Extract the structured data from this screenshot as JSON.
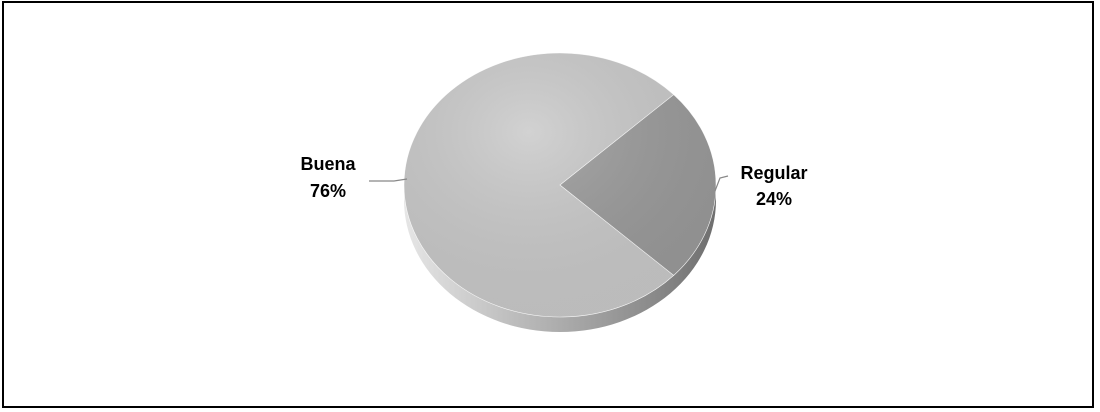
{
  "chart_data": {
    "type": "pie",
    "style": "3d",
    "title": "",
    "slices": [
      {
        "label": "Buena",
        "value": 76,
        "display": "76%",
        "color": "#c8c8c8"
      },
      {
        "label": "Regular",
        "value": 24,
        "display": "24%",
        "color": "#999999"
      }
    ],
    "legend": "none",
    "data_labels": "outside with leader lines"
  }
}
